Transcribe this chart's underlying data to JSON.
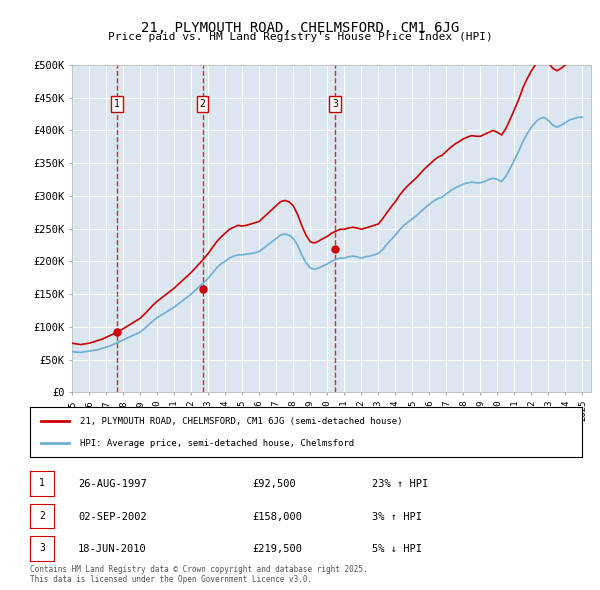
{
  "title": "21, PLYMOUTH ROAD, CHELMSFORD, CM1 6JG",
  "subtitle": "Price paid vs. HM Land Registry's House Price Index (HPI)",
  "bg_color": "#ffffff",
  "plot_bg_color": "#dce6f0",
  "grid_color": "#ffffff",
  "ylabel_ticks": [
    "£0",
    "£50K",
    "£100K",
    "£150K",
    "£200K",
    "£250K",
    "£300K",
    "£350K",
    "£400K",
    "£450K",
    "£500K"
  ],
  "ytick_vals": [
    0,
    50000,
    100000,
    150000,
    200000,
    250000,
    300000,
    350000,
    400000,
    450000,
    500000
  ],
  "xmin": 1995.0,
  "xmax": 2025.5,
  "ymin": 0,
  "ymax": 500000,
  "hpi_color": "#6baed6",
  "price_color": "#cc0000",
  "vline_color": "#cc0000",
  "sale_points": [
    {
      "year": 1997.65,
      "price": 92500,
      "label": "1"
    },
    {
      "year": 2002.67,
      "price": 158000,
      "label": "2"
    },
    {
      "year": 2010.46,
      "price": 219500,
      "label": "3"
    }
  ],
  "legend_price_label": "21, PLYMOUTH ROAD, CHELMSFORD, CM1 6JG (semi-detached house)",
  "legend_hpi_label": "HPI: Average price, semi-detached house, Chelmsford",
  "table_rows": [
    {
      "num": "1",
      "date": "26-AUG-1997",
      "price": "£92,500",
      "change": "23% ↑ HPI"
    },
    {
      "num": "2",
      "date": "02-SEP-2002",
      "price": "£158,000",
      "change": "3% ↑ HPI"
    },
    {
      "num": "3",
      "date": "18-JUN-2010",
      "price": "£219,500",
      "change": "5% ↓ HPI"
    }
  ],
  "footer": "Contains HM Land Registry data © Crown copyright and database right 2025.\nThis data is licensed under the Open Government Licence v3.0.",
  "hpi_data_x": [
    1995.0,
    1995.25,
    1995.5,
    1995.75,
    1996.0,
    1996.25,
    1996.5,
    1996.75,
    1997.0,
    1997.25,
    1997.5,
    1997.75,
    1998.0,
    1998.25,
    1998.5,
    1998.75,
    1999.0,
    1999.25,
    1999.5,
    1999.75,
    2000.0,
    2000.25,
    2000.5,
    2000.75,
    2001.0,
    2001.25,
    2001.5,
    2001.75,
    2002.0,
    2002.25,
    2002.5,
    2002.75,
    2003.0,
    2003.25,
    2003.5,
    2003.75,
    2004.0,
    2004.25,
    2004.5,
    2004.75,
    2005.0,
    2005.25,
    2005.5,
    2005.75,
    2006.0,
    2006.25,
    2006.5,
    2006.75,
    2007.0,
    2007.25,
    2007.5,
    2007.75,
    2008.0,
    2008.25,
    2008.5,
    2008.75,
    2009.0,
    2009.25,
    2009.5,
    2009.75,
    2010.0,
    2010.25,
    2010.5,
    2010.75,
    2011.0,
    2011.25,
    2011.5,
    2011.75,
    2012.0,
    2012.25,
    2012.5,
    2012.75,
    2013.0,
    2013.25,
    2013.5,
    2013.75,
    2014.0,
    2014.25,
    2014.5,
    2014.75,
    2015.0,
    2015.25,
    2015.5,
    2015.75,
    2016.0,
    2016.25,
    2016.5,
    2016.75,
    2017.0,
    2017.25,
    2017.5,
    2017.75,
    2018.0,
    2018.25,
    2018.5,
    2018.75,
    2019.0,
    2019.25,
    2019.5,
    2019.75,
    2020.0,
    2020.25,
    2020.5,
    2020.75,
    2021.0,
    2021.25,
    2021.5,
    2021.75,
    2022.0,
    2022.25,
    2022.5,
    2022.75,
    2023.0,
    2023.25,
    2023.5,
    2023.75,
    2024.0,
    2024.25,
    2024.5,
    2024.75,
    2025.0
  ],
  "hpi_data_y": [
    62000,
    61500,
    61000,
    62000,
    63000,
    64000,
    65000,
    67000,
    69000,
    71000,
    74000,
    77000,
    80000,
    83000,
    86000,
    89000,
    92000,
    97000,
    103000,
    109000,
    114000,
    118000,
    122000,
    126000,
    130000,
    135000,
    140000,
    145000,
    150000,
    156000,
    162000,
    168000,
    174000,
    182000,
    190000,
    196000,
    200000,
    205000,
    208000,
    210000,
    210000,
    211000,
    212000,
    213000,
    215000,
    220000,
    225000,
    230000,
    235000,
    240000,
    242000,
    240000,
    235000,
    225000,
    210000,
    198000,
    190000,
    188000,
    190000,
    193000,
    196000,
    200000,
    203000,
    205000,
    205000,
    207000,
    208000,
    207000,
    205000,
    207000,
    208000,
    210000,
    212000,
    218000,
    226000,
    233000,
    240000,
    248000,
    255000,
    260000,
    265000,
    270000,
    276000,
    282000,
    287000,
    292000,
    296000,
    298000,
    303000,
    308000,
    312000,
    315000,
    318000,
    320000,
    321000,
    320000,
    320000,
    322000,
    325000,
    327000,
    325000,
    322000,
    330000,
    342000,
    355000,
    368000,
    383000,
    395000,
    405000,
    413000,
    418000,
    420000,
    415000,
    408000,
    405000,
    408000,
    412000,
    416000,
    418000,
    420000,
    420000
  ],
  "price_data_x": [
    1995.0,
    1995.25,
    1995.5,
    1995.75,
    1996.0,
    1996.25,
    1996.5,
    1996.75,
    1997.0,
    1997.25,
    1997.5,
    1997.75,
    1998.0,
    1998.25,
    1998.5,
    1998.75,
    1999.0,
    1999.25,
    1999.5,
    1999.75,
    2000.0,
    2000.25,
    2000.5,
    2000.75,
    2001.0,
    2001.25,
    2001.5,
    2001.75,
    2002.0,
    2002.25,
    2002.5,
    2002.75,
    2003.0,
    2003.25,
    2003.5,
    2003.75,
    2004.0,
    2004.25,
    2004.5,
    2004.75,
    2005.0,
    2005.25,
    2005.5,
    2005.75,
    2006.0,
    2006.25,
    2006.5,
    2006.75,
    2007.0,
    2007.25,
    2007.5,
    2007.75,
    2008.0,
    2008.25,
    2008.5,
    2008.75,
    2009.0,
    2009.25,
    2009.5,
    2009.75,
    2010.0,
    2010.25,
    2010.5,
    2010.75,
    2011.0,
    2011.25,
    2011.5,
    2011.75,
    2012.0,
    2012.25,
    2012.5,
    2012.75,
    2013.0,
    2013.25,
    2013.5,
    2013.75,
    2014.0,
    2014.25,
    2014.5,
    2014.75,
    2015.0,
    2015.25,
    2015.5,
    2015.75,
    2016.0,
    2016.25,
    2016.5,
    2016.75,
    2017.0,
    2017.25,
    2017.5,
    2017.75,
    2018.0,
    2018.25,
    2018.5,
    2018.75,
    2019.0,
    2019.25,
    2019.5,
    2019.75,
    2020.0,
    2020.25,
    2020.5,
    2020.75,
    2021.0,
    2021.25,
    2021.5,
    2021.75,
    2022.0,
    2022.25,
    2022.5,
    2022.75,
    2023.0,
    2023.25,
    2023.5,
    2023.75,
    2024.0,
    2024.25,
    2024.5,
    2024.75,
    2025.0
  ],
  "price_data_y": [
    75000,
    74000,
    73000,
    74000,
    75000,
    77000,
    79000,
    81000,
    84000,
    87000,
    90000,
    93500,
    97000,
    101000,
    105000,
    109000,
    113000,
    119000,
    126000,
    133000,
    139000,
    144000,
    149000,
    154000,
    159000,
    165000,
    171000,
    177000,
    183000,
    190000,
    197000,
    204000,
    212000,
    221000,
    230000,
    237000,
    243000,
    249000,
    252000,
    255000,
    254000,
    255000,
    257000,
    259000,
    261000,
    267000,
    273000,
    279000,
    285000,
    291000,
    293000,
    291000,
    285000,
    272000,
    255000,
    240000,
    230000,
    228000,
    231000,
    235000,
    238000,
    243000,
    246000,
    249000,
    249000,
    251000,
    252000,
    251000,
    249000,
    251000,
    253000,
    255000,
    257000,
    265000,
    274000,
    283000,
    291000,
    301000,
    309000,
    316000,
    322000,
    328000,
    335000,
    342000,
    348000,
    354000,
    359000,
    362000,
    368000,
    374000,
    379000,
    383000,
    387000,
    390000,
    392000,
    391000,
    391000,
    394000,
    397000,
    400000,
    397000,
    393000,
    403000,
    417000,
    432000,
    447000,
    465000,
    479000,
    491000,
    501000,
    506000,
    509000,
    503000,
    495000,
    491000,
    495000,
    500000,
    505000,
    509000,
    512000,
    513000
  ]
}
